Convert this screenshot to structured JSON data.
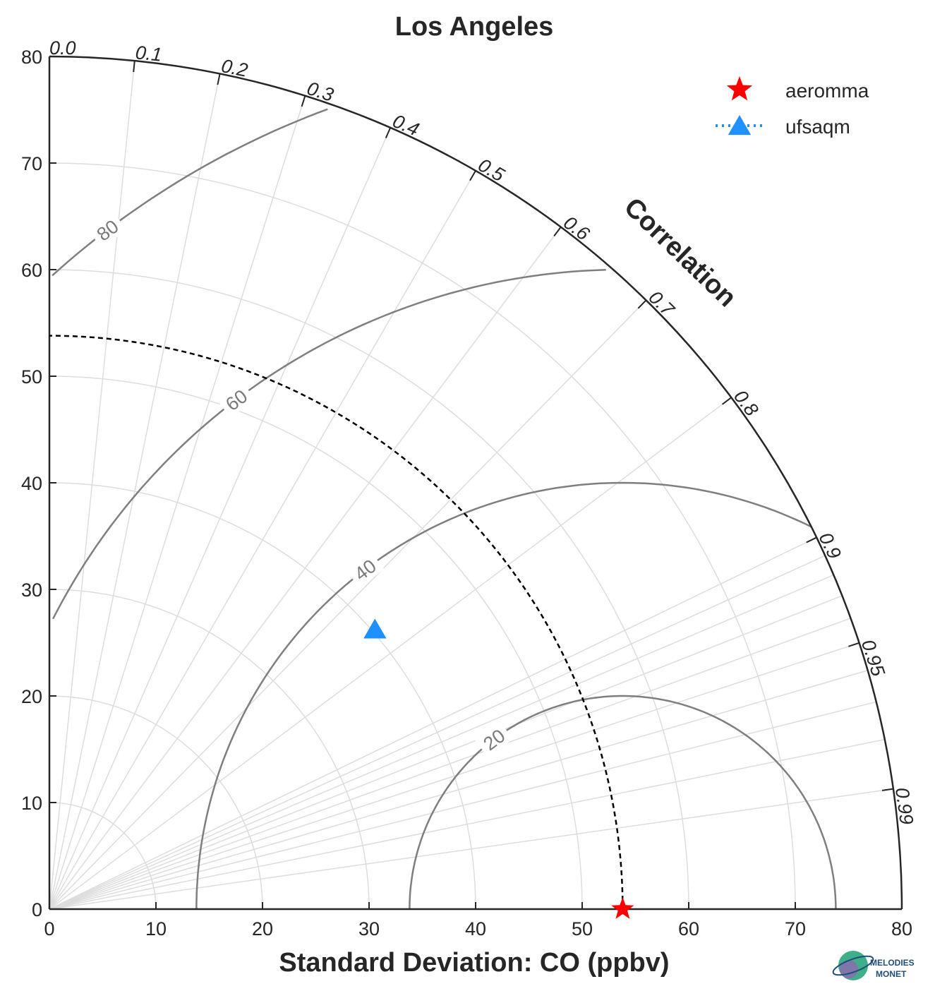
{
  "chart_data": {
    "type": "taylor-diagram",
    "title": "Los Angeles",
    "xlabel": "Standard Deviation: CO (ppbv)",
    "radial_axis_title": "Correlation",
    "std_range": [
      0,
      80
    ],
    "std_ticks": [
      0,
      10,
      20,
      30,
      40,
      50,
      60,
      70,
      80
    ],
    "correlation_ticks": [
      0.0,
      0.1,
      0.2,
      0.3,
      0.4,
      0.5,
      0.6,
      0.7,
      0.8,
      0.9,
      0.95,
      0.99
    ],
    "correlation_tick_labels": [
      "0.0",
      "0.1",
      "0.2",
      "0.3",
      "0.4",
      "0.5",
      "0.6",
      "0.7",
      "0.8",
      "0.9",
      "0.95",
      "0.99"
    ],
    "reference_std": 53.8,
    "rmse_contours": [
      20,
      40,
      60,
      80
    ],
    "grid": true,
    "legend_position": "top-right",
    "series": [
      {
        "name": "aeromma",
        "marker": "star",
        "color": "#ff0000",
        "std": 53.8,
        "correlation": 1.0
      },
      {
        "name": "ufsaqm",
        "marker": "triangle",
        "color": "#1e90ff",
        "std": 40.2,
        "correlation": 0.76
      }
    ]
  },
  "logo": {
    "line1": "MELODIES",
    "line2": "MONET"
  }
}
